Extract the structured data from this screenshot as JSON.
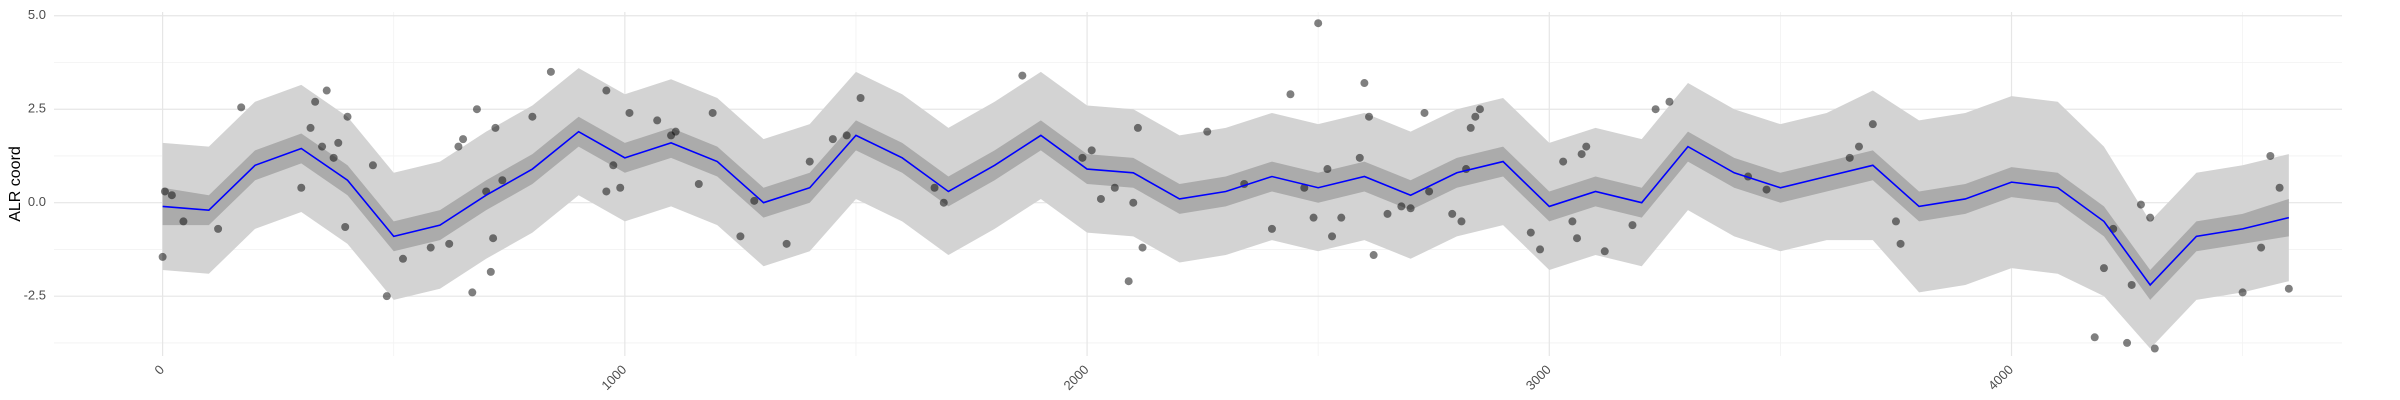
{
  "chart_data": {
    "type": "line",
    "y_label": "ALR coord",
    "xlim": [
      -235,
      4715
    ],
    "ylim": [
      -4.1,
      5.1
    ],
    "xticks": [
      0,
      1000,
      2000,
      3000,
      4000
    ],
    "yticks": [
      -2.5,
      {
        "value": 0,
        "label": "0.0"
      },
      2.5,
      {
        "value": 5,
        "label": "5.0"
      }
    ],
    "x_minor_ticks": [
      500,
      1500,
      2500,
      3500,
      4500
    ],
    "y_minor_ticks": [
      -3.75,
      -1.25,
      1.25,
      3.75
    ],
    "grid": true,
    "x": [
      0,
      100,
      200,
      300,
      400,
      500,
      600,
      700,
      800,
      900,
      1000,
      1100,
      1200,
      1300,
      1400,
      1500,
      1600,
      1700,
      1800,
      1900,
      2000,
      2100,
      2200,
      2300,
      2400,
      2500,
      2600,
      2700,
      2800,
      2900,
      3000,
      3100,
      3200,
      3300,
      3400,
      3500,
      3600,
      3700,
      3800,
      3900,
      4000,
      4100,
      4200,
      4300,
      4400,
      4500,
      4600
    ],
    "outer_band": {
      "color": "#d3d3d3",
      "lower": [
        -1.8,
        -1.9,
        -0.7,
        -0.25,
        -1.1,
        -2.6,
        -2.3,
        -1.5,
        -0.8,
        0.2,
        -0.5,
        -0.1,
        -0.6,
        -1.7,
        -1.3,
        0.1,
        -0.5,
        -1.4,
        -0.7,
        0.1,
        -0.8,
        -0.9,
        -1.6,
        -1.4,
        -1.0,
        -1.3,
        -1.0,
        -1.5,
        -0.9,
        -0.6,
        -1.8,
        -1.4,
        -1.7,
        -0.2,
        -0.9,
        -1.3,
        -1.0,
        -1.0,
        -2.4,
        -2.2,
        -1.75,
        -1.9,
        -2.5,
        -3.9,
        -2.6,
        -2.4,
        -2.1
      ],
      "upper": [
        1.6,
        1.5,
        2.7,
        3.15,
        2.3,
        0.8,
        1.1,
        1.9,
        2.6,
        3.6,
        2.9,
        3.3,
        2.8,
        1.7,
        2.1,
        3.5,
        2.9,
        2.0,
        2.7,
        3.5,
        2.6,
        2.5,
        1.8,
        2.0,
        2.4,
        2.1,
        2.4,
        1.9,
        2.5,
        2.8,
        1.6,
        2.0,
        1.7,
        3.2,
        2.5,
        2.1,
        2.4,
        3.0,
        2.2,
        2.4,
        2.85,
        2.7,
        1.5,
        -0.5,
        0.8,
        1.0,
        1.3
      ]
    },
    "inner_band": {
      "color": "#ababab",
      "lower": [
        -0.6,
        -0.6,
        0.6,
        1.05,
        0.2,
        -1.3,
        -1.0,
        -0.2,
        0.5,
        1.5,
        0.8,
        1.2,
        0.7,
        -0.4,
        0.0,
        1.4,
        0.8,
        -0.1,
        0.6,
        1.4,
        0.5,
        0.4,
        -0.3,
        -0.1,
        0.3,
        0.0,
        0.3,
        -0.2,
        0.4,
        0.7,
        -0.5,
        -0.1,
        -0.4,
        1.1,
        0.4,
        0.0,
        0.3,
        0.6,
        -0.5,
        -0.3,
        0.15,
        0.0,
        -0.9,
        -2.6,
        -1.3,
        -1.1,
        -0.9
      ],
      "upper": [
        0.4,
        0.2,
        1.4,
        1.85,
        1.0,
        -0.5,
        -0.2,
        0.6,
        1.3,
        2.3,
        1.6,
        2.0,
        1.5,
        0.4,
        0.8,
        2.2,
        1.6,
        0.7,
        1.4,
        2.2,
        1.3,
        1.2,
        0.5,
        0.7,
        1.1,
        0.8,
        1.1,
        0.6,
        1.2,
        1.5,
        0.3,
        0.7,
        0.4,
        1.9,
        1.2,
        0.8,
        1.1,
        1.4,
        0.3,
        0.5,
        0.95,
        0.8,
        -0.1,
        -1.8,
        -0.5,
        -0.3,
        0.1
      ]
    },
    "smooth": {
      "color": "#0000ff",
      "values": [
        -0.1,
        -0.2,
        1.0,
        1.45,
        0.6,
        -0.9,
        -0.6,
        0.2,
        0.9,
        1.9,
        1.2,
        1.6,
        1.1,
        0.0,
        0.4,
        1.8,
        1.2,
        0.3,
        1.0,
        1.8,
        0.9,
        0.8,
        0.1,
        0.3,
        0.7,
        0.4,
        0.7,
        0.2,
        0.8,
        1.1,
        -0.1,
        0.3,
        0.0,
        1.5,
        0.8,
        0.4,
        0.7,
        1.0,
        -0.1,
        0.1,
        0.55,
        0.4,
        -0.5,
        -2.2,
        -0.9,
        -0.7,
        -0.4
      ]
    },
    "points": {
      "color": "#000000",
      "x": [
        0,
        5,
        20,
        45,
        120,
        170,
        300,
        320,
        330,
        345,
        355,
        370,
        380,
        395,
        400,
        455,
        485,
        520,
        580,
        620,
        640,
        650,
        670,
        680,
        700,
        710,
        715,
        720,
        735,
        800,
        840,
        960,
        960,
        975,
        990,
        1010,
        1070,
        1100,
        1110,
        1160,
        1190,
        1250,
        1280,
        1350,
        1400,
        1450,
        1480,
        1510,
        1670,
        1690,
        1860,
        1990,
        2010,
        2030,
        2060,
        2090,
        2100,
        2110,
        2120,
        2260,
        2340,
        2400,
        2440,
        2470,
        2490,
        2500,
        2520,
        2530,
        2550,
        2590,
        2600,
        2610,
        2620,
        2650,
        2680,
        2700,
        2730,
        2740,
        2790,
        2810,
        2820,
        2830,
        2840,
        2850,
        2960,
        2980,
        3030,
        3050,
        3060,
        3070,
        3080,
        3120,
        3180,
        3230,
        3260,
        3430,
        3470,
        3650,
        3670,
        3700,
        3750,
        3760,
        4180,
        4200,
        4220,
        4250,
        4260,
        4280,
        4300,
        4310,
        4500,
        4540,
        4560,
        4580,
        4600
      ],
      "values": [
        -1.45,
        0.3,
        0.2,
        -0.5,
        -0.7,
        2.55,
        0.4,
        2.0,
        2.7,
        1.5,
        3.0,
        1.2,
        1.6,
        -0.65,
        2.3,
        1.0,
        -2.5,
        -1.5,
        -1.2,
        -1.1,
        1.5,
        1.7,
        -2.4,
        2.5,
        0.3,
        -1.85,
        -0.95,
        2.0,
        0.6,
        2.3,
        3.5,
        0.3,
        3.0,
        1.0,
        0.4,
        2.4,
        2.2,
        1.8,
        1.9,
        0.5,
        2.4,
        -0.9,
        0.05,
        -1.1,
        1.1,
        1.7,
        1.8,
        2.8,
        0.4,
        0.0,
        3.4,
        1.2,
        1.4,
        0.1,
        0.4,
        -2.1,
        0.0,
        2.0,
        -1.2,
        1.9,
        0.5,
        -0.7,
        2.9,
        0.4,
        -0.4,
        4.8,
        0.9,
        -0.9,
        -0.4,
        1.2,
        3.2,
        2.3,
        -1.4,
        -0.3,
        -0.1,
        -0.15,
        2.4,
        0.3,
        -0.3,
        -0.5,
        0.9,
        2.0,
        2.3,
        2.5,
        -0.8,
        -1.25,
        1.1,
        -0.5,
        -0.95,
        1.3,
        1.5,
        -1.3,
        -0.6,
        2.5,
        2.7,
        0.7,
        0.35,
        1.2,
        1.5,
        2.1,
        -0.5,
        -1.1,
        -3.6,
        -1.75,
        -0.7,
        -3.75,
        -2.2,
        -0.05,
        -0.4,
        -3.9,
        -2.4,
        -1.2,
        1.25,
        0.4,
        -2.3
      ]
    }
  }
}
